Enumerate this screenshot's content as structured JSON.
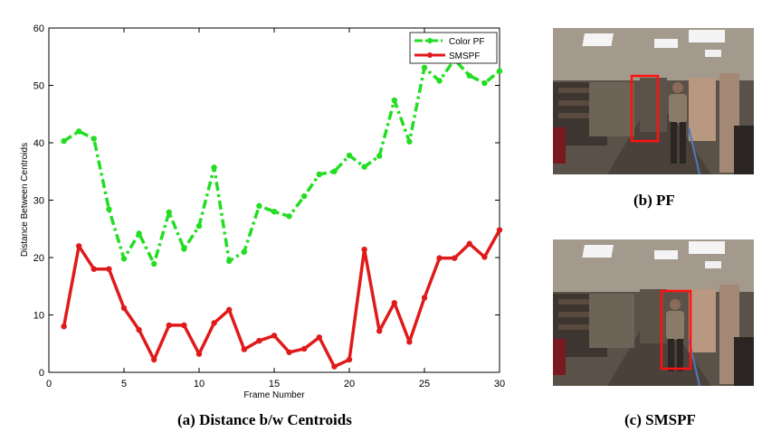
{
  "chart_data": {
    "type": "line",
    "xlabel": "Frame Number",
    "ylabel": "Distance Between Centroids",
    "xlim": [
      0,
      30
    ],
    "ylim": [
      0,
      60
    ],
    "xticks": [
      0,
      5,
      10,
      15,
      20,
      25,
      30
    ],
    "yticks": [
      0,
      10,
      20,
      30,
      40,
      50,
      60
    ],
    "grid": false,
    "legend_position": "top-right",
    "x": [
      1,
      2,
      3,
      4,
      5,
      6,
      7,
      8,
      9,
      10,
      11,
      12,
      13,
      14,
      15,
      16,
      17,
      18,
      19,
      20,
      21,
      22,
      23,
      24,
      25,
      26,
      27,
      28,
      29,
      30
    ],
    "series": [
      {
        "name": "Color PF",
        "color": "#22dd22",
        "style": "dash-dot",
        "values": [
          40.3,
          42,
          40.7,
          28.4,
          19.8,
          24.2,
          18.9,
          27.9,
          21.5,
          25.5,
          35.7,
          19.4,
          21,
          29,
          28,
          27.2,
          30.7,
          34.5,
          35,
          37.8,
          35.8,
          37.7,
          47.4,
          40.2,
          53.1,
          50.8,
          54.5,
          51.7,
          50.4,
          52.5
        ]
      },
      {
        "name": "SMSPF",
        "color": "#e01a1a",
        "style": "solid",
        "values": [
          8,
          22,
          18,
          18,
          11.2,
          7.4,
          2.2,
          8.2,
          8.2,
          3.2,
          8.6,
          10.9,
          4,
          5.5,
          6.4,
          3.5,
          4.1,
          6.1,
          1,
          2.2,
          21.4,
          7.2,
          12.1,
          5.3,
          13,
          19.9,
          19.9,
          22.4,
          20.1,
          24.8
        ]
      }
    ]
  },
  "captions": {
    "a": "(a) Distance b/w Centroids",
    "b": "(b) PF",
    "c": "(c) SMSPF"
  }
}
